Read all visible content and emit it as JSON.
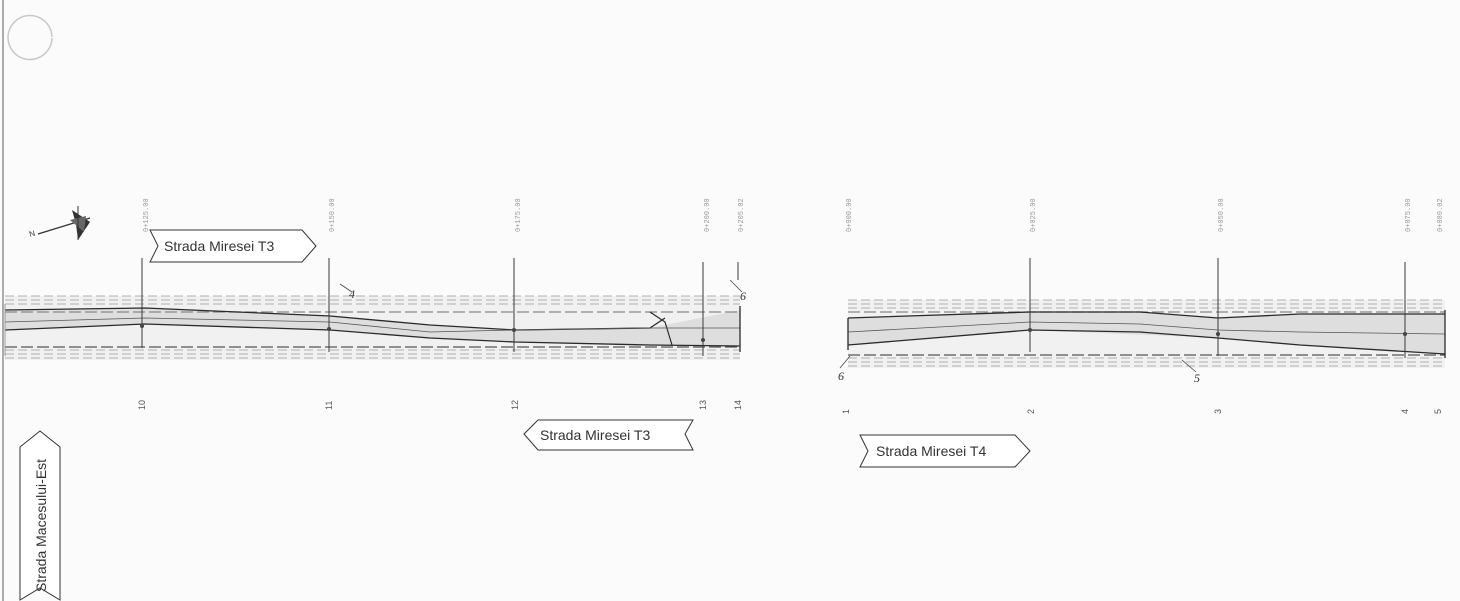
{
  "labels": {
    "street_t3_top": "Strada Miresei T3",
    "street_t3_bottom": "Strada Miresei T3",
    "street_t4": "Strada Miresei T4",
    "street_macesului": "Strada Macesului-Est"
  },
  "stations_left": [
    {
      "num": "10",
      "chain": "0+125.00"
    },
    {
      "num": "11",
      "chain": "0+150.00"
    },
    {
      "num": "12",
      "chain": "0+175.00"
    },
    {
      "num": "13",
      "chain": "0+200.00"
    },
    {
      "num": "14",
      "chain": "0+205.02"
    }
  ],
  "stations_right": [
    {
      "num": "1",
      "chain": "0+000.00"
    },
    {
      "num": "2",
      "chain": "0+025.00"
    },
    {
      "num": "3",
      "chain": "0+050.00"
    },
    {
      "num": "4",
      "chain": "0+075.00"
    },
    {
      "num": "5",
      "chain": "0+080.02"
    }
  ],
  "markers": {
    "m4": "4",
    "m6_left": "6",
    "m6_right": "6",
    "m5": "5"
  },
  "north": {
    "letter": "N",
    "icon": "north-arrow-icon"
  },
  "colors": {
    "road": "#e2e2e2",
    "line": "#2a2a2a",
    "dash": "#b5b5b5"
  }
}
